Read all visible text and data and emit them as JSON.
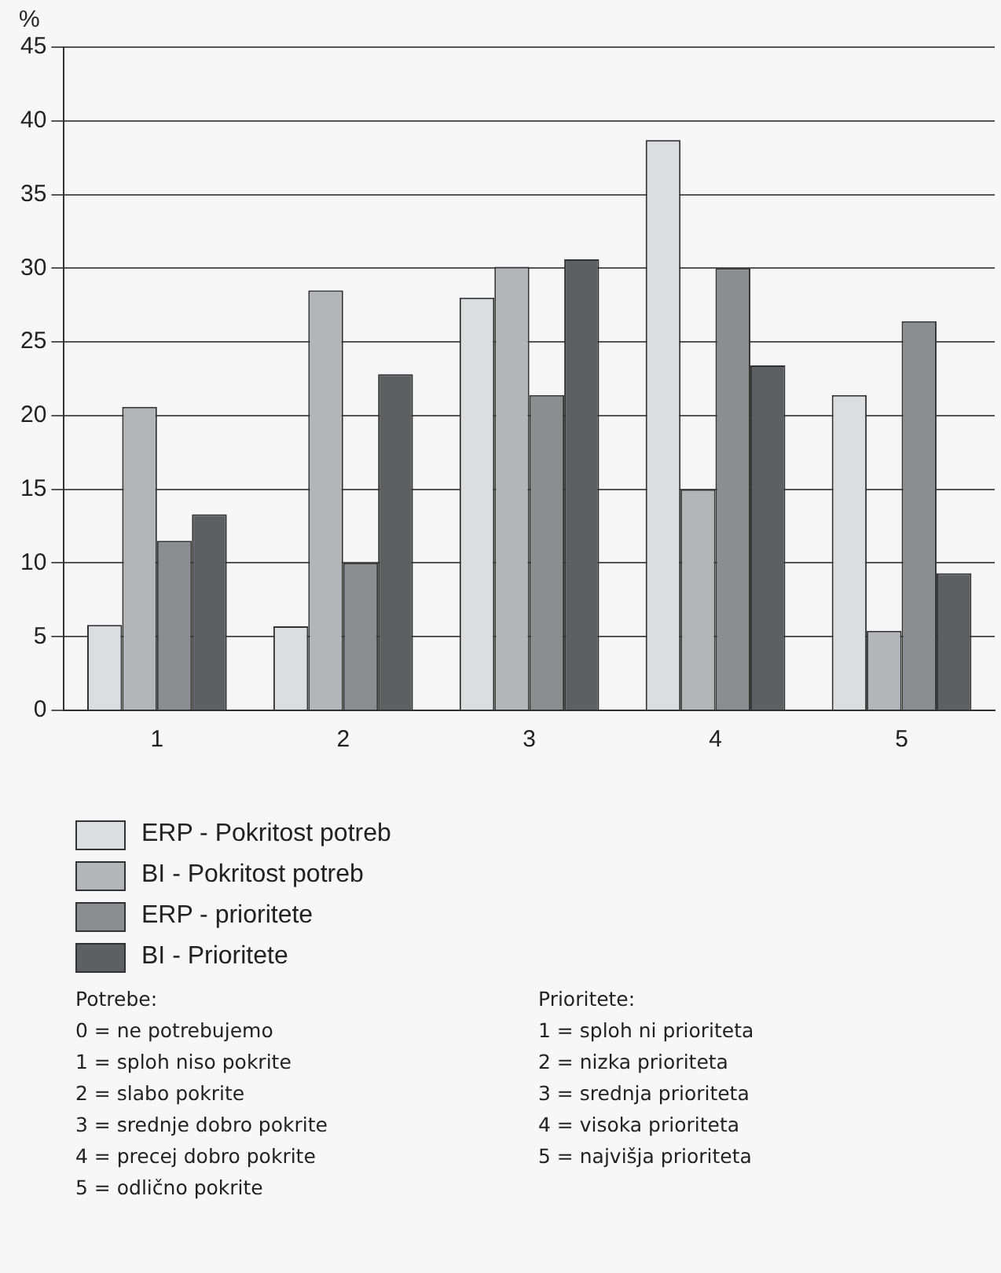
{
  "chart_data": {
    "type": "bar",
    "ylabel": "%",
    "categories": [
      "1",
      "2",
      "3",
      "4",
      "5"
    ],
    "series": [
      {
        "name": "ERP - Pokritost potreb",
        "color": "#dcdde0",
        "values": [
          5.8,
          5.7,
          28,
          38.7,
          21.4
        ]
      },
      {
        "name": "BI - Pokritost potreb",
        "color": "#b4b5b9",
        "values": [
          20.6,
          28.5,
          30.1,
          15,
          5.4
        ]
      },
      {
        "name": "ERP - prioritete",
        "color": "#8c8d91",
        "values": [
          11.5,
          10,
          21.4,
          30,
          26.4
        ]
      },
      {
        "name": "BI - Prioritete",
        "color": "#5e5f63",
        "values": [
          13.3,
          22.8,
          30.6,
          23.4,
          9.3
        ]
      }
    ],
    "ylim": [
      0,
      45
    ],
    "yticks": [
      0,
      5,
      10,
      15,
      20,
      25,
      30,
      35,
      40,
      45
    ],
    "grid": "y",
    "legend": "bottom",
    "annotations": [
      "Potrebe:",
      "0 = ne potrebujemo",
      "1 = sploh niso pokrite",
      "2 = slabo pokrite",
      "3 = srednje dobro pokrite",
      "4 = precej dobro pokrite",
      "5 = odlično pokrite",
      "Prioritete:",
      "1 = sploh ni prioriteta",
      "2 = nizka prioriteta",
      "3 = srednja prioriteta",
      "4 = visoka prioriteta",
      "5 = najvišja prioriteta"
    ]
  }
}
